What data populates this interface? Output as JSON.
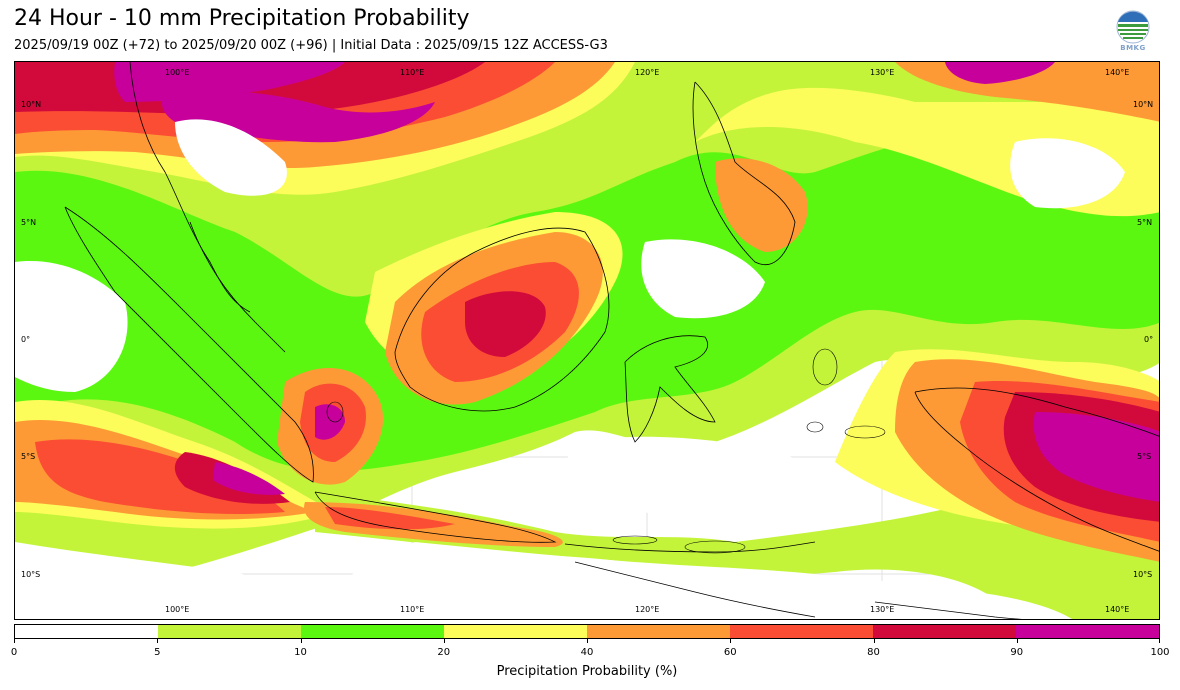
{
  "header": {
    "title": "24 Hour - 10 mm Precipitation Probability",
    "subtitle": "2025/09/19 00Z (+72) to 2025/09/20 00Z (+96) | Initial Data : 2025/09/15 12Z ACCESS-G3",
    "logo_text": "BMKG"
  },
  "map": {
    "lon_labels": [
      "100°E",
      "110°E",
      "120°E",
      "130°E",
      "140°E"
    ],
    "lat_labels": [
      "10°N",
      "5°N",
      "0°",
      "5°S",
      "10°S"
    ],
    "palette": {
      "p5": "#c3f43a",
      "p10": "#5cf711",
      "p20": "#fcfc5a",
      "p40": "#fd9a36",
      "p60": "#fb4d34",
      "p80": "#d20a3c",
      "p90": "#c7009c"
    }
  },
  "colorbar": {
    "ticks": [
      "0",
      "5",
      "10",
      "20",
      "40",
      "60",
      "80",
      "90",
      "100"
    ],
    "colors": [
      "#ffffff",
      "#c3f43a",
      "#5cf711",
      "#fcfc5a",
      "#fd9a36",
      "#fb4d34",
      "#d20a3c",
      "#c7009c"
    ],
    "label": "Precipitation Probability (%)"
  }
}
